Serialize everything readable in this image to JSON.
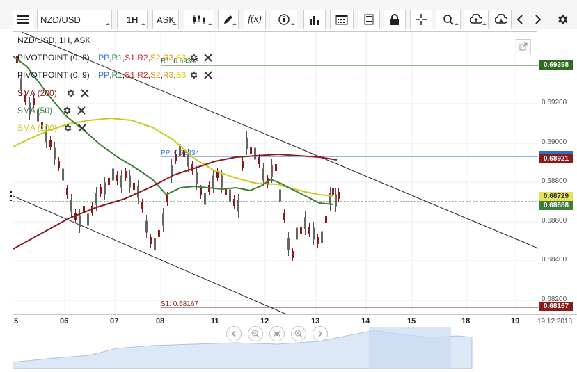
{
  "toolbar": {
    "symbol": "NZD/USD",
    "timeframe": "1H",
    "price_type": "ASK",
    "fx_label": "f(x)"
  },
  "chart": {
    "heading": "NZD/USD, 1H, ASK",
    "indicators": [
      {
        "name": "PIVOTPOINT (0, 8)",
        "color": "#222222",
        "legend": [
          "PP",
          "R1",
          "S1",
          "R2",
          "S2",
          "R3",
          "S3"
        ]
      },
      {
        "name": "PIVOTPOINT (0, 9)",
        "color": "#222222",
        "legend": [
          "PP",
          "R1",
          "S1",
          "R2",
          "S2",
          "R3",
          "S3"
        ]
      },
      {
        "name": "SMA (200)",
        "color": "#8b1a1a"
      },
      {
        "name": "SMA (50)",
        "color": "#3c7d3c"
      },
      {
        "name": "SMA (100)",
        "color": "#c9c922"
      }
    ],
    "legend_colors": {
      "PP": "#2f6fd1",
      "R1": "#2e7d32",
      "S1": "#c62828",
      "R2": "#c62828",
      "S2": "#e69500",
      "R3": "#e69500",
      "S3": "#e0d000"
    },
    "lines": {
      "r1_label": "R1: 0.69398",
      "pp_label": "PP: 0.68934",
      "s1_label": "S1: 0.68167"
    },
    "price_labels": [
      "0.69200",
      "0.69000",
      "0.68800",
      "0.68600",
      "0.68400",
      "0.68200"
    ],
    "price_pills": [
      {
        "value": "0.69398",
        "bg": "#2f6b22",
        "fg": "#ffffff"
      },
      {
        "value": "0.68921",
        "bg": "#8b1a1a",
        "fg": "#ffffff"
      },
      {
        "value": "0.68729",
        "bg": "#e6e25a",
        "fg": "#333333"
      },
      {
        "value": "0.68688",
        "bg": "#3c7d3c",
        "fg": "#ffffff"
      },
      {
        "value": "0.68167",
        "bg": "#8b1a1a",
        "fg": "#ffffff"
      }
    ],
    "time_labels": [
      "5",
      "06",
      "07",
      "08",
      "11",
      "12",
      "13",
      "14",
      "15",
      "18",
      "19",
      "19.12.2018"
    ]
  }
}
